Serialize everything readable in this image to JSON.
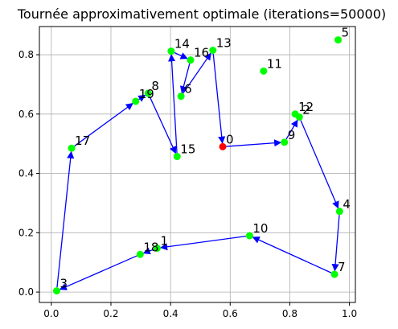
{
  "chart_data": {
    "type": "scatter",
    "title": "Tournée approximativement optimale (iterations=50000)",
    "xlabel": "",
    "ylabel": "",
    "xlim": [
      -0.04,
      1.02
    ],
    "ylim": [
      -0.035,
      0.895
    ],
    "xticks": [
      0.0,
      0.2,
      0.4,
      0.6,
      0.8,
      1.0
    ],
    "xtick_labels": [
      "0.0",
      "0.2",
      "0.4",
      "0.6",
      "0.8",
      "1.0"
    ],
    "yticks": [
      0.0,
      0.2,
      0.4,
      0.6,
      0.8
    ],
    "ytick_labels": [
      "0.0",
      "0.2",
      "0.4",
      "0.6",
      "0.8"
    ],
    "grid": true,
    "colors": {
      "node": "#00ff00",
      "start_node": "#ff0000",
      "route": "#0000ff"
    },
    "nodes": [
      {
        "label": "0",
        "x": 0.575,
        "y": 0.49
      },
      {
        "label": "1",
        "x": 0.355,
        "y": 0.148
      },
      {
        "label": "2",
        "x": 0.832,
        "y": 0.59
      },
      {
        "label": "3",
        "x": 0.018,
        "y": 0.004
      },
      {
        "label": "4",
        "x": 0.967,
        "y": 0.272
      },
      {
        "label": "5",
        "x": 0.962,
        "y": 0.85
      },
      {
        "label": "6",
        "x": 0.435,
        "y": 0.66
      },
      {
        "label": "7",
        "x": 0.95,
        "y": 0.06
      },
      {
        "label": "8",
        "x": 0.325,
        "y": 0.67
      },
      {
        "label": "9",
        "x": 0.782,
        "y": 0.505
      },
      {
        "label": "10",
        "x": 0.665,
        "y": 0.19
      },
      {
        "label": "11",
        "x": 0.712,
        "y": 0.745
      },
      {
        "label": "12",
        "x": 0.818,
        "y": 0.6
      },
      {
        "label": "13",
        "x": 0.542,
        "y": 0.815
      },
      {
        "label": "14",
        "x": 0.402,
        "y": 0.812
      },
      {
        "label": "15",
        "x": 0.422,
        "y": 0.457
      },
      {
        "label": "16",
        "x": 0.467,
        "y": 0.782
      },
      {
        "label": "17",
        "x": 0.068,
        "y": 0.485
      },
      {
        "label": "18",
        "x": 0.298,
        "y": 0.127
      },
      {
        "label": "19",
        "x": 0.283,
        "y": 0.643
      }
    ],
    "route": [
      "0",
      "9",
      "2",
      "4",
      "7",
      "10",
      "1",
      "18",
      "3",
      "17",
      "19",
      "8",
      "15",
      "14",
      "16",
      "6",
      "13",
      "0"
    ],
    "route_start": "0"
  }
}
